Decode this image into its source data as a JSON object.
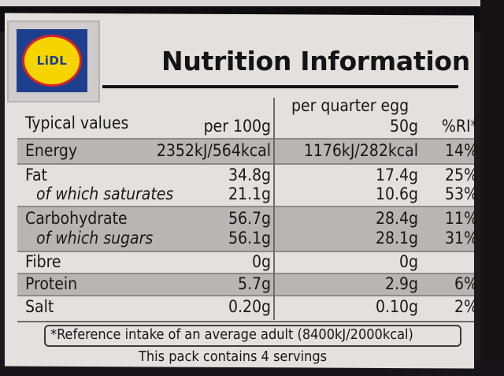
{
  "brand": {
    "logo_text": "LiDL"
  },
  "title": "Nutrition Information",
  "header": {
    "typical_values": "Typical values",
    "per_100g": "per 100g",
    "per_quarter_egg": "per quarter egg",
    "portion_weight": "50g",
    "ri_label": "%RI*"
  },
  "rows": [
    {
      "name": "Energy",
      "per100": "2352kJ/564kcal",
      "portion": "1176kJ/282kcal",
      "ri": "14%"
    },
    {
      "name": "Fat",
      "per100": "34.8g",
      "portion": "17.4g",
      "ri": "25%"
    },
    {
      "name": "of which saturates",
      "per100": "21.1g",
      "portion": "10.6g",
      "ri": "53%"
    },
    {
      "name": "Carbohydrate",
      "per100": "56.7g",
      "portion": "28.4g",
      "ri": "11%"
    },
    {
      "name": "of which sugars",
      "per100": "56.1g",
      "portion": "28.1g",
      "ri": "31%"
    },
    {
      "name": "Fibre",
      "per100": "0g",
      "portion": "0g",
      "ri": ""
    },
    {
      "name": "Protein",
      "per100": "5.7g",
      "portion": "2.9g",
      "ri": "6%"
    },
    {
      "name": "Salt",
      "per100": "0.20g",
      "portion": "0.10g",
      "ri": "2%"
    }
  ],
  "footnote": "*Reference intake of an average adult (8400kJ/2000kcal)",
  "servings": "This pack contains 4 servings",
  "colors": {
    "panel": "#e3e0dd",
    "shade": "#b9b5b3",
    "lidl_blue": "#1d3f8e",
    "lidl_yellow": "#f5d400",
    "lidl_red": "#d6212b"
  }
}
